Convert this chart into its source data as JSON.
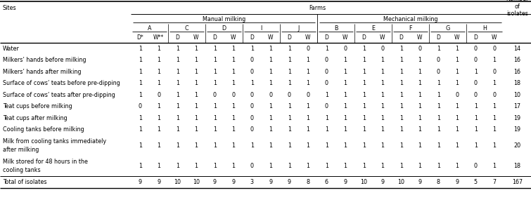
{
  "col_header_dw": [
    "D*",
    "W**",
    "D",
    "W",
    "D",
    "W",
    "D",
    "W",
    "D",
    "W",
    "D",
    "W",
    "D",
    "W",
    "D",
    "W",
    "D",
    "W",
    "D",
    "W"
  ],
  "farm_labels_manual": [
    "A",
    "C",
    "D",
    "I",
    "J"
  ],
  "farm_labels_mech": [
    "B",
    "E",
    "F",
    "G",
    "H"
  ],
  "row_labels": [
    "Water",
    "Milkers’ hands before milking",
    "Milkers’ hands after milking",
    "Surface of cows’ teats before pre-dipping",
    "Surface of cows’ teats after pre-dipping",
    "Teat cups before milking",
    "Teat cups after milking",
    "Cooling tanks before milking",
    "Milk from cooling tanks immediately\nafter milking",
    "Milk stored for 48 hours in the\ncooling tanks",
    "Total of isolates"
  ],
  "data": [
    [
      1,
      1,
      1,
      1,
      1,
      1,
      1,
      1,
      1,
      0,
      1,
      0,
      1,
      0,
      1,
      0,
      1,
      1,
      0,
      0,
      14
    ],
    [
      1,
      1,
      1,
      1,
      1,
      1,
      0,
      1,
      1,
      1,
      0,
      1,
      1,
      1,
      1,
      1,
      0,
      1,
      0,
      1,
      16
    ],
    [
      1,
      1,
      1,
      1,
      1,
      1,
      0,
      1,
      1,
      1,
      0,
      1,
      1,
      1,
      1,
      1,
      0,
      1,
      1,
      0,
      16
    ],
    [
      1,
      1,
      1,
      1,
      1,
      1,
      1,
      1,
      1,
      1,
      0,
      1,
      1,
      1,
      1,
      1,
      1,
      1,
      0,
      1,
      18
    ],
    [
      1,
      0,
      1,
      1,
      0,
      0,
      0,
      0,
      0,
      0,
      1,
      1,
      1,
      1,
      1,
      1,
      1,
      0,
      0,
      0,
      10
    ],
    [
      0,
      1,
      1,
      1,
      1,
      1,
      0,
      1,
      1,
      1,
      0,
      1,
      1,
      1,
      1,
      1,
      1,
      1,
      1,
      1,
      17
    ],
    [
      1,
      1,
      1,
      1,
      1,
      1,
      0,
      1,
      1,
      1,
      1,
      1,
      1,
      1,
      1,
      1,
      1,
      1,
      1,
      1,
      19
    ],
    [
      1,
      1,
      1,
      1,
      1,
      1,
      0,
      1,
      1,
      1,
      1,
      1,
      1,
      1,
      1,
      1,
      1,
      1,
      1,
      1,
      19
    ],
    [
      1,
      1,
      1,
      1,
      1,
      1,
      1,
      1,
      1,
      1,
      1,
      1,
      1,
      1,
      1,
      1,
      1,
      1,
      1,
      1,
      20
    ],
    [
      1,
      1,
      1,
      1,
      1,
      1,
      0,
      1,
      1,
      1,
      1,
      1,
      1,
      1,
      1,
      1,
      1,
      1,
      0,
      1,
      18
    ],
    [
      9,
      9,
      10,
      10,
      9,
      9,
      3,
      9,
      9,
      8,
      6,
      9,
      10,
      9,
      10,
      9,
      8,
      9,
      5,
      7,
      167
    ]
  ],
  "bg_color": "#ffffff",
  "line_color": "#000000",
  "text_color": "#000000",
  "font_size": 5.8
}
